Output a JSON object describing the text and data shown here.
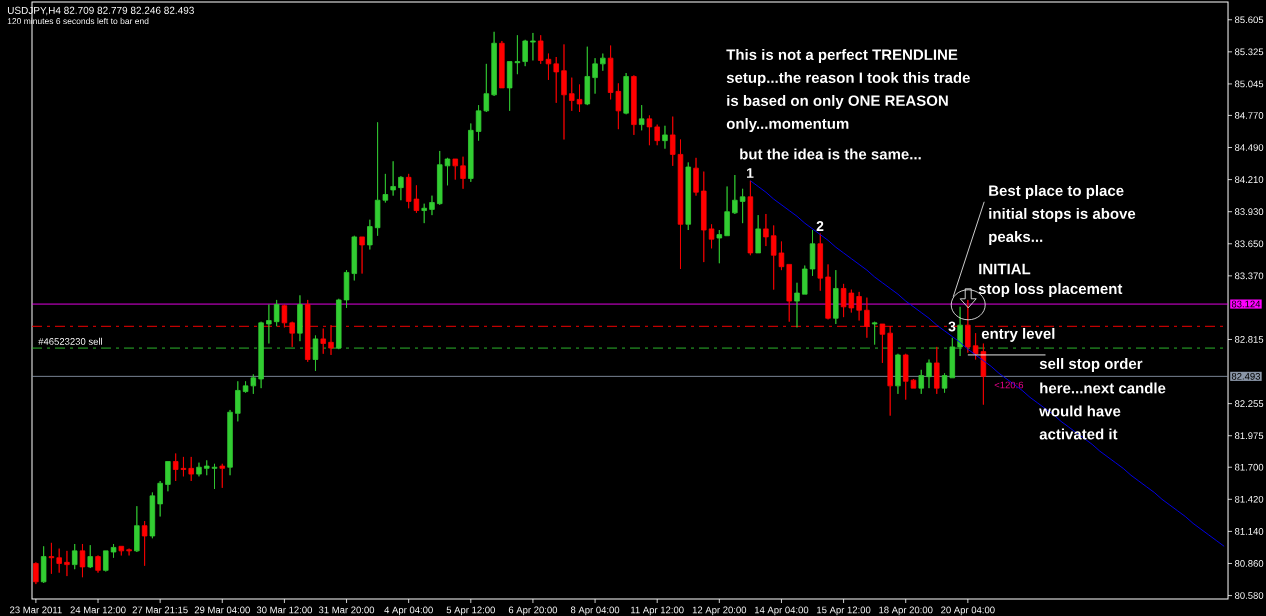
{
  "chart_data": {
    "type": "candlestick",
    "title": "USDJPY,H4 82.709 82.779 82.246 82.493",
    "subtitle": "120 minutes 6 seconds left to bar end",
    "categories": [
      "23 Mar 2011",
      null,
      null,
      null,
      null,
      null,
      null,
      null,
      "24 Mar 12:00",
      null,
      null,
      null,
      null,
      null,
      null,
      null,
      "27 Mar 21:15",
      null,
      null,
      null,
      null,
      null,
      null,
      null,
      "29 Mar 04:00",
      null,
      null,
      null,
      null,
      null,
      null,
      null,
      "30 Mar 12:00",
      null,
      null,
      null,
      null,
      null,
      null,
      null,
      "31 Mar 20:00",
      null,
      null,
      null,
      null,
      null,
      null,
      null,
      "4 Apr 04:00",
      null,
      null,
      null,
      null,
      null,
      null,
      null,
      "5 Apr 12:00",
      null,
      null,
      null,
      null,
      null,
      null,
      null,
      "6 Apr 20:00",
      null,
      null,
      null,
      null,
      null,
      null,
      null,
      "8 Apr 04:00",
      null,
      null,
      null,
      null,
      null,
      null,
      null,
      "11 Apr 12:00",
      null,
      null,
      null,
      null,
      null,
      null,
      null,
      "12 Apr 20:00",
      null,
      null,
      null,
      null,
      null,
      null,
      null,
      "14 Apr 04:00",
      null,
      null,
      null,
      null,
      null,
      null,
      null,
      "15 Apr 12:00",
      null,
      null,
      null,
      null,
      null,
      null,
      null,
      "18 Apr 20:00",
      null,
      null,
      null,
      null,
      null,
      null,
      null,
      "20 Apr 04:00",
      null,
      null,
      null,
      null,
      null,
      null,
      null,
      null,
      null,
      null,
      null,
      null,
      null,
      null,
      null,
      null,
      null,
      null,
      null,
      null,
      null,
      null,
      null,
      null,
      null,
      null,
      null,
      null,
      null,
      null,
      null,
      null,
      null
    ],
    "ylim": [
      80.55,
      85.76
    ],
    "yticks": [
      85.605,
      85.325,
      85.045,
      {
        "value": 84.77,
        "label": "84.770"
      },
      {
        "value": 84.49,
        "label": "84.490"
      },
      {
        "value": 84.21,
        "label": "84.210"
      },
      {
        "value": 83.93,
        "label": "83.930"
      },
      {
        "value": 83.65,
        "label": "83.650"
      },
      {
        "value": 83.37,
        "label": "83.370"
      },
      82.815,
      82.255,
      81.975,
      {
        "value": 81.7,
        "label": "81.700"
      },
      {
        "value": 81.42,
        "label": "81.420"
      },
      {
        "value": 81.14,
        "label": "81.140"
      },
      {
        "value": 80.86,
        "label": "80.860"
      },
      {
        "value": 80.58,
        "label": "80.580"
      }
    ],
    "series": [
      {
        "ohlc": [
          [
            80.86,
            80.87,
            80.68,
            80.7
          ],
          [
            80.7,
            81.01,
            80.69,
            80.92
          ],
          [
            80.92,
            81.04,
            80.77,
            80.91
          ],
          [
            80.91,
            80.99,
            80.78,
            80.86
          ],
          [
            80.87,
            80.97,
            80.75,
            80.85
          ],
          [
            80.85,
            81.03,
            80.81,
            80.97
          ],
          [
            80.97,
            81.03,
            80.74,
            80.83
          ],
          [
            80.83,
            81.02,
            80.82,
            80.92
          ],
          [
            80.92,
            80.93,
            80.78,
            80.8
          ],
          [
            80.8,
            80.97,
            80.79,
            80.97
          ],
          [
            80.96,
            81.03,
            80.91,
            81.0
          ],
          [
            81.01,
            81.01,
            80.93,
            80.97
          ],
          [
            80.98,
            80.99,
            80.93,
            80.97
          ],
          [
            80.97,
            81.36,
            80.96,
            81.19
          ],
          [
            81.19,
            81.23,
            80.84,
            81.1
          ],
          [
            81.1,
            81.48,
            81.08,
            81.45
          ],
          [
            81.38,
            81.58,
            81.27,
            81.56
          ],
          [
            81.55,
            81.75,
            81.49,
            81.75
          ],
          [
            81.75,
            81.82,
            81.58,
            81.68
          ],
          [
            81.69,
            81.79,
            81.62,
            81.68
          ],
          [
            81.69,
            81.79,
            81.58,
            81.64
          ],
          [
            81.64,
            81.74,
            81.62,
            81.7
          ],
          [
            81.69,
            81.76,
            81.63,
            81.71
          ],
          [
            81.69,
            81.73,
            81.51,
            81.7
          ],
          [
            81.71,
            81.73,
            81.52,
            81.69
          ],
          [
            81.7,
            82.2,
            81.63,
            82.18
          ],
          [
            82.17,
            82.45,
            82.1,
            82.37
          ],
          [
            82.36,
            82.45,
            82.35,
            82.41
          ],
          [
            82.41,
            82.51,
            82.34,
            82.48
          ],
          [
            82.47,
            82.97,
            82.39,
            82.96
          ],
          [
            82.95,
            83.12,
            82.78,
            82.98
          ],
          [
            82.97,
            83.16,
            82.93,
            83.12
          ],
          [
            83.11,
            83.12,
            82.92,
            82.96
          ],
          [
            82.96,
            82.97,
            82.75,
            82.87
          ],
          [
            82.87,
            83.2,
            82.8,
            83.12
          ],
          [
            83.12,
            83.16,
            82.62,
            82.64
          ],
          [
            82.64,
            82.85,
            82.54,
            82.82
          ],
          [
            82.82,
            82.91,
            82.69,
            82.78
          ],
          [
            82.79,
            82.94,
            82.68,
            82.74
          ],
          [
            82.74,
            83.17,
            82.73,
            83.16
          ],
          [
            83.16,
            83.42,
            83.09,
            83.4
          ],
          [
            83.39,
            83.72,
            83.33,
            83.71
          ],
          [
            83.71,
            83.71,
            83.39,
            83.64
          ],
          [
            83.64,
            83.86,
            83.6,
            83.8
          ],
          [
            83.79,
            84.71,
            83.72,
            84.03
          ],
          [
            84.03,
            84.26,
            84.01,
            84.08
          ],
          [
            84.12,
            84.37,
            84.07,
            84.15
          ],
          [
            84.14,
            84.24,
            84.03,
            84.23
          ],
          [
            84.23,
            84.26,
            83.96,
            84.02
          ],
          [
            84.04,
            84.16,
            83.92,
            83.94
          ],
          [
            83.94,
            84.0,
            83.83,
            83.96
          ],
          [
            83.95,
            84.07,
            83.9,
            84.01
          ],
          [
            84.0,
            84.46,
            83.99,
            84.34
          ],
          [
            84.33,
            84.4,
            84.16,
            84.39
          ],
          [
            84.39,
            84.39,
            84.21,
            84.33
          ],
          [
            84.33,
            84.41,
            84.13,
            84.22
          ],
          [
            84.22,
            84.7,
            84.19,
            84.64
          ],
          [
            84.63,
            84.86,
            84.55,
            84.81
          ],
          [
            84.81,
            85.22,
            84.8,
            84.96
          ],
          [
            84.95,
            85.5,
            84.94,
            85.4
          ],
          [
            85.4,
            85.42,
            85.01,
            85.01
          ],
          [
            85.01,
            85.24,
            84.81,
            85.24
          ],
          [
            85.23,
            85.47,
            85.13,
            85.24
          ],
          [
            85.24,
            85.43,
            85.2,
            85.42
          ],
          [
            85.41,
            85.49,
            85.25,
            85.42
          ],
          [
            85.42,
            85.47,
            85.22,
            85.25
          ],
          [
            85.26,
            85.31,
            85.08,
            85.22
          ],
          [
            85.22,
            85.28,
            84.88,
            85.15
          ],
          [
            85.16,
            85.39,
            84.56,
            84.95
          ],
          [
            84.96,
            85.1,
            84.81,
            84.9
          ],
          [
            84.91,
            85.04,
            84.8,
            84.87
          ],
          [
            84.87,
            85.37,
            84.86,
            85.11
          ],
          [
            85.1,
            85.27,
            84.96,
            85.22
          ],
          [
            85.22,
            85.31,
            85.16,
            85.27
          ],
          [
            85.27,
            85.38,
            84.91,
            84.97
          ],
          [
            84.98,
            85.05,
            84.65,
            84.81
          ],
          [
            84.79,
            85.14,
            84.78,
            85.11
          ],
          [
            85.11,
            85.12,
            84.6,
            84.69
          ],
          [
            84.69,
            84.86,
            84.64,
            84.74
          ],
          [
            84.74,
            84.77,
            84.51,
            84.67
          ],
          [
            84.67,
            84.69,
            84.51,
            84.55
          ],
          [
            84.55,
            84.68,
            84.48,
            84.6
          ],
          [
            84.6,
            84.76,
            84.33,
            84.43
          ],
          [
            84.43,
            84.56,
            83.43,
            83.82
          ],
          [
            83.82,
            84.36,
            83.77,
            84.32
          ],
          [
            84.31,
            84.4,
            84.07,
            84.1
          ],
          [
            84.11,
            84.28,
            83.49,
            83.77
          ],
          [
            83.78,
            83.82,
            83.61,
            83.69
          ],
          [
            83.7,
            83.77,
            83.48,
            83.73
          ],
          [
            83.72,
            84.15,
            83.72,
            83.93
          ],
          [
            83.92,
            84.25,
            83.91,
            84.03
          ],
          [
            84.02,
            84.13,
            83.83,
            84.06
          ],
          [
            84.06,
            84.2,
            83.55,
            83.57
          ],
          [
            83.57,
            83.9,
            83.57,
            83.78
          ],
          [
            83.78,
            83.91,
            83.63,
            83.71
          ],
          [
            83.72,
            83.81,
            83.25,
            83.55
          ],
          [
            83.57,
            83.67,
            83.42,
            83.45
          ],
          [
            83.47,
            83.47,
            82.97,
            83.15
          ],
          [
            83.15,
            83.31,
            82.92,
            83.22
          ],
          [
            83.21,
            83.46,
            83.21,
            83.43
          ],
          [
            83.43,
            83.77,
            83.37,
            83.65
          ],
          [
            83.65,
            83.74,
            83.24,
            83.35
          ],
          [
            83.36,
            83.47,
            82.99,
            83.0
          ],
          [
            83.0,
            83.42,
            82.95,
            83.26
          ],
          [
            83.26,
            83.3,
            83.01,
            83.1
          ],
          [
            83.22,
            83.25,
            83.05,
            83.09
          ],
          [
            83.19,
            83.23,
            82.98,
            83.07
          ],
          [
            83.07,
            83.18,
            82.83,
            82.93
          ],
          [
            82.95,
            82.97,
            82.77,
            82.96
          ],
          [
            82.95,
            82.95,
            82.61,
            82.86
          ],
          [
            82.87,
            82.93,
            82.15,
            82.41
          ],
          [
            82.41,
            82.69,
            82.34,
            82.68
          ],
          [
            82.68,
            82.69,
            82.29,
            82.45
          ],
          [
            82.46,
            82.47,
            82.39,
            82.39
          ],
          [
            82.39,
            82.55,
            82.34,
            82.5
          ],
          [
            82.49,
            82.64,
            82.39,
            82.61
          ],
          [
            82.61,
            82.75,
            82.34,
            82.39
          ],
          [
            82.39,
            82.52,
            82.35,
            82.5
          ],
          [
            82.48,
            82.83,
            82.48,
            82.75
          ],
          [
            82.75,
            83.1,
            82.67,
            82.94
          ],
          [
            82.94,
            83.16,
            82.7,
            82.75
          ],
          [
            82.76,
            82.87,
            82.64,
            82.69
          ],
          [
            82.709,
            82.779,
            82.246,
            82.493
          ],
          null,
          null,
          null,
          null,
          null,
          null,
          null,
          null,
          null,
          null,
          null,
          null,
          null,
          null,
          null,
          null,
          null,
          null,
          null,
          null,
          null,
          null,
          null,
          null,
          null,
          null,
          null,
          null,
          null,
          null,
          null
        ],
        "colors": [
          "#ff0000",
          "#32cd32",
          "#ff0000",
          "#ff0000",
          "#ff0000",
          "#32cd32",
          "#ff0000",
          "#32cd32",
          "#ff0000",
          "#32cd32",
          "#32cd32",
          "#ff0000",
          "#ff0000",
          "#32cd32",
          "#ff0000",
          "#32cd32",
          "#32cd32",
          "#32cd32",
          "#ff0000",
          "#ff0000",
          "#ff0000",
          "#32cd32",
          "#32cd32",
          "#32cd32",
          "#ff0000",
          "#32cd32",
          "#32cd32",
          "#32cd32",
          "#32cd32",
          "#32cd32",
          "#32cd32",
          "#32cd32",
          "#ff0000",
          "#ff0000",
          "#32cd32",
          "#ff0000",
          "#32cd32",
          "#ff0000",
          "#ff0000",
          "#32cd32",
          "#32cd32",
          "#32cd32",
          "#ff0000",
          "#32cd32",
          "#32cd32",
          "#32cd32",
          "#32cd32",
          "#32cd32",
          "#ff0000",
          "#ff0000",
          "#32cd32",
          "#32cd32",
          "#32cd32",
          "#32cd32",
          "#ff0000",
          "#ff0000",
          "#32cd32",
          "#32cd32",
          "#32cd32",
          "#32cd32",
          "#ff0000",
          "#32cd32",
          "#32cd32",
          "#32cd32",
          "#32cd32",
          "#ff0000",
          "#ff0000",
          "#ff0000",
          "#ff0000",
          "#ff0000",
          "#ff0000",
          "#32cd32",
          "#32cd32",
          "#32cd32",
          "#ff0000",
          "#ff0000",
          "#32cd32",
          "#ff0000",
          "#32cd32",
          "#ff0000",
          "#ff0000",
          "#32cd32",
          "#ff0000",
          "#ff0000",
          "#32cd32",
          "#ff0000",
          "#ff0000",
          "#ff0000",
          "#32cd32",
          "#32cd32",
          "#32cd32",
          "#32cd32",
          "#ff0000",
          "#32cd32",
          "#ff0000",
          "#ff0000",
          "#ff0000",
          "#ff0000",
          "#32cd32",
          "#32cd32",
          "#32cd32",
          "#ff0000",
          "#ff0000",
          "#32cd32",
          "#ff0000",
          "#ff0000",
          "#ff0000",
          "#ff0000",
          "#32cd32",
          "#ff0000",
          "#ff0000",
          "#32cd32",
          "#ff0000",
          "#ff0000",
          "#32cd32",
          "#32cd32",
          "#ff0000",
          "#32cd32",
          "#32cd32",
          "#32cd32",
          "#ff0000",
          "#ff0000",
          "#ff0000",
          null,
          null,
          null,
          null,
          null,
          null,
          null,
          null,
          null,
          null,
          null,
          null,
          null,
          null,
          null,
          null,
          null,
          null,
          null,
          null,
          null,
          null,
          null,
          null,
          null,
          null,
          null,
          null,
          null,
          null,
          null
        ]
      },
      {
        "type": "line",
        "color": "#0000ff",
        "values": [
          null,
          null,
          null,
          null,
          null,
          null,
          null,
          null,
          null,
          null,
          null,
          null,
          null,
          null,
          null,
          null,
          null,
          null,
          null,
          null,
          null,
          null,
          null,
          null,
          null,
          null,
          null,
          null,
          null,
          null,
          null,
          null,
          null,
          null,
          null,
          null,
          null,
          null,
          null,
          null,
          null,
          null,
          null,
          null,
          null,
          null,
          null,
          null,
          null,
          null,
          null,
          null,
          null,
          null,
          null,
          null,
          null,
          null,
          null,
          null,
          null,
          null,
          null,
          null,
          null,
          null,
          null,
          null,
          null,
          null,
          null,
          null,
          null,
          null,
          null,
          null,
          null,
          null,
          null,
          null,
          null,
          null,
          null,
          null,
          null,
          null,
          null,
          null,
          null,
          null,
          null,
          null,
          84.2,
          84.15,
          84.1,
          84.04,
          83.99,
          83.94,
          83.89,
          83.83,
          83.78,
          83.73,
          83.68,
          83.62,
          83.57,
          83.52,
          83.47,
          83.42,
          83.36,
          83.31,
          83.26,
          83.21,
          83.15,
          83.1,
          83.05,
          83.0,
          82.94,
          82.89,
          82.84,
          82.79,
          82.73,
          82.68,
          82.63,
          82.58,
          82.52,
          82.47,
          82.42,
          82.37,
          82.31,
          82.26,
          82.21,
          82.16,
          82.1,
          82.05,
          82.0,
          81.95,
          81.9,
          81.84,
          81.79,
          81.74,
          81.69,
          81.63,
          81.58,
          81.53,
          81.48,
          81.42,
          81.37,
          81.32,
          81.27,
          81.21,
          81.16,
          81.11,
          81.06,
          81.01
        ]
      },
      {
        "type": "line",
        "color": "#ffffff",
        "values": [
          null,
          null,
          null,
          null,
          null,
          null,
          null,
          null,
          null,
          null,
          null,
          null,
          null,
          null,
          null,
          null,
          null,
          null,
          null,
          null,
          null,
          null,
          null,
          null,
          null,
          null,
          null,
          null,
          null,
          null,
          null,
          null,
          null,
          null,
          null,
          null,
          null,
          null,
          null,
          null,
          null,
          null,
          null,
          null,
          null,
          null,
          null,
          null,
          null,
          null,
          null,
          null,
          null,
          null,
          null,
          null,
          null,
          null,
          null,
          null,
          null,
          null,
          null,
          null,
          null,
          null,
          null,
          null,
          null,
          null,
          null,
          null,
          null,
          null,
          null,
          null,
          null,
          null,
          null,
          null,
          null,
          null,
          null,
          null,
          null,
          null,
          null,
          null,
          null,
          null,
          null,
          null,
          null,
          null,
          null,
          null,
          null,
          null,
          null,
          null,
          null,
          null,
          null,
          null,
          null,
          null,
          null,
          null,
          null,
          null,
          null,
          null,
          null,
          null,
          null,
          null,
          null,
          null,
          null,
          null,
          82.68,
          82.68,
          82.68,
          82.68,
          82.68,
          82.68,
          82.68,
          82.68,
          82.68,
          82.68,
          82.68,
          null,
          null,
          null,
          null,
          null,
          null,
          null,
          null,
          null,
          null,
          null,
          null,
          null,
          null,
          null,
          null,
          null,
          null,
          null,
          null,
          null,
          null,
          null
        ]
      }
    ],
    "ref_lines": [
      {
        "axis": "y",
        "value": 83.124,
        "label": "83.124",
        "color": "#ff00ff",
        "line_style": "solid"
      },
      {
        "axis": "y",
        "value": 82.93,
        "color": "#ff0000",
        "line_style": "dashed"
      },
      {
        "axis": "y",
        "value": 82.74,
        "label": "#46523230 sell",
        "color": "#32cd32",
        "line_style": "dashed"
      },
      {
        "axis": "y",
        "value": 82.493,
        "label": "82.493",
        "color": "#8a96a8",
        "line_style": "solid"
      }
    ],
    "annotations": [
      "This is not a perfect TRENDLINE",
      "setup...the reason I took this trade",
      "is based on only ONE REASON",
      "only...momentum",
      "but the idea is the same...",
      "1",
      "2",
      "Best place to place",
      "initial stops is above",
      "peaks...",
      "INITIAL",
      {
        "text": "stop loss placement",
        "y": 83.124
      },
      {
        "text": "3",
        "y": 82.85
      },
      {
        "text": "entry level",
        "y": 82.68
      },
      "sell stop order",
      "here...next candle",
      "would have",
      "activated it",
      "<120:6"
    ]
  }
}
